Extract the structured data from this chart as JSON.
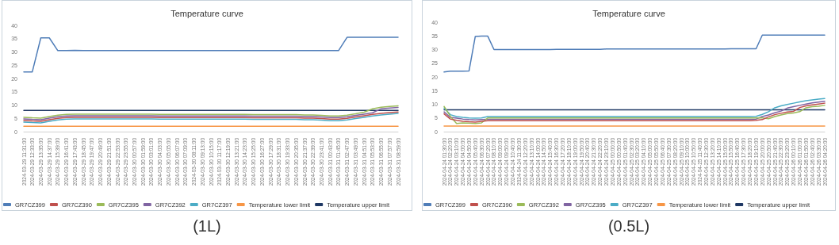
{
  "chart_data": [
    {
      "type": "line",
      "title": "Temperature curve",
      "legend": "bottom",
      "grid": false,
      "ylim": [
        0,
        40
      ],
      "yticks": [
        0,
        5,
        10,
        15,
        20,
        25,
        30,
        35,
        40
      ],
      "annotations": [
        "(1L)"
      ],
      "categories": [
        "2024-03-29 11:31:00",
        "2024-03-29 12:33:00",
        "2024-03-29 13:35:00",
        "2024-03-29 14:37:00",
        "2024-03-29 15:39:00",
        "2024-03-29 16:41:00",
        "2024-03-29 17:43:00",
        "2024-03-29 18:45:00",
        "2024-03-29 19:47:00",
        "2024-03-29 20:49:00",
        "2024-03-29 21:51:00",
        "2024-03-29 22:53:00",
        "2024-03-29 23:55:00",
        "2024-03-30 00:57:00",
        "2024-03-30 01:59:00",
        "2024-03-30 03:01:00",
        "2024-03-30 04:03:00",
        "2024-03-30 05:05:00",
        "2024-03-30 06:07:00",
        "2024-03-30 07:09:00",
        "2024-03-30 08:11:00",
        "2024-03-30 09:13:00",
        "2024-03-30 10:15:00",
        "2024-03-30 11:17:00",
        "2024-03-30 12:19:00",
        "2024-03-30 13:21:00",
        "2024-03-30 14:23:00",
        "2024-03-30 15:25:00",
        "2024-03-30 16:27:00",
        "2024-03-30 17:29:00",
        "2024-03-30 18:31:00",
        "2024-03-30 19:33:00",
        "2024-03-30 20:35:00",
        "2024-03-30 21:37:00",
        "2024-03-30 22:39:00",
        "2024-03-30 23:41:00",
        "2024-03-31 00:43:00",
        "2024-03-31 01:45:00",
        "2024-03-31 02:47:00",
        "2024-03-31 03:49:00",
        "2024-03-31 04:51:00",
        "2024-03-31 05:53:00",
        "2024-03-31 06:55:00",
        "2024-03-31 07:57:00",
        "2024-03-31 08:59:00"
      ],
      "series": [
        {
          "name": "GR7CZ399",
          "color": "#4f7db8",
          "values": [
            22.5,
            22.5,
            35.3,
            35.3,
            30.5,
            30.5,
            30.6,
            30.5,
            30.5,
            30.5,
            30.5,
            30.5,
            30.5,
            30.5,
            30.5,
            30.5,
            30.5,
            30.5,
            30.5,
            30.5,
            30.5,
            30.5,
            30.5,
            30.5,
            30.5,
            30.5,
            30.5,
            30.5,
            30.5,
            30.5,
            30.5,
            30.5,
            30.5,
            30.5,
            30.5,
            30.5,
            30.5,
            30.5,
            35.5,
            35.5,
            35.5,
            35.5,
            35.5,
            35.5,
            35.5
          ]
        },
        {
          "name": "GR7CZ390",
          "color": "#c0504d",
          "values": [
            4.2,
            4.0,
            3.9,
            4.5,
            5.0,
            5.3,
            5.4,
            5.4,
            5.4,
            5.4,
            5.4,
            5.4,
            5.4,
            5.4,
            5.4,
            5.4,
            5.3,
            5.3,
            5.3,
            5.3,
            5.3,
            5.3,
            5.3,
            5.3,
            5.3,
            5.3,
            5.3,
            5.2,
            5.2,
            5.2,
            5.2,
            5.2,
            5.2,
            5.1,
            5.1,
            4.9,
            4.7,
            4.7,
            5.0,
            5.5,
            6.0,
            6.5,
            6.9,
            7.2,
            7.4
          ]
        },
        {
          "name": "GR7CZ395",
          "color": "#9bbb59",
          "values": [
            5.4,
            5.2,
            5.1,
            5.7,
            6.2,
            6.5,
            6.6,
            6.6,
            6.6,
            6.6,
            6.6,
            6.6,
            6.6,
            6.6,
            6.6,
            6.6,
            6.5,
            6.5,
            6.5,
            6.5,
            6.5,
            6.5,
            6.5,
            6.5,
            6.5,
            6.5,
            6.5,
            6.4,
            6.4,
            6.4,
            6.4,
            6.4,
            6.4,
            6.3,
            6.3,
            6.1,
            5.9,
            5.9,
            6.2,
            6.7,
            7.3,
            8.6,
            9.2,
            9.5,
            9.7
          ]
        },
        {
          "name": "GR7CZ392",
          "color": "#8064a2",
          "values": [
            4.8,
            4.6,
            4.5,
            5.1,
            5.6,
            5.9,
            6.0,
            6.0,
            6.0,
            6.0,
            6.0,
            6.0,
            6.0,
            6.0,
            6.0,
            6.0,
            5.9,
            5.9,
            5.9,
            5.9,
            5.9,
            5.9,
            5.9,
            5.9,
            5.9,
            5.9,
            5.9,
            5.8,
            5.8,
            5.8,
            5.8,
            5.8,
            5.8,
            5.7,
            5.7,
            5.5,
            5.3,
            5.3,
            5.6,
            6.1,
            6.6,
            7.1,
            8.6,
            8.9,
            9.1
          ]
        },
        {
          "name": "GR7CZ397",
          "color": "#4bacc6",
          "values": [
            3.6,
            3.4,
            3.3,
            3.9,
            4.4,
            4.7,
            4.8,
            4.8,
            4.8,
            4.8,
            4.8,
            4.8,
            4.8,
            4.8,
            4.8,
            4.8,
            4.7,
            4.7,
            4.7,
            4.7,
            4.7,
            4.7,
            4.7,
            4.7,
            4.7,
            4.7,
            4.7,
            4.6,
            4.6,
            4.6,
            4.6,
            4.6,
            4.6,
            4.5,
            4.5,
            4.3,
            4.1,
            4.1,
            4.4,
            4.9,
            5.4,
            5.9,
            6.3,
            6.6,
            6.9
          ]
        },
        {
          "name": "Temperature lower limit",
          "color": "#f79646",
          "values": [
            2,
            2,
            2,
            2,
            2,
            2,
            2,
            2,
            2,
            2,
            2,
            2,
            2,
            2,
            2,
            2,
            2,
            2,
            2,
            2,
            2,
            2,
            2,
            2,
            2,
            2,
            2,
            2,
            2,
            2,
            2,
            2,
            2,
            2,
            2,
            2,
            2,
            2,
            2,
            2,
            2,
            2,
            2,
            2,
            2
          ]
        },
        {
          "name": "Temperature upper limit",
          "color": "#1f3864",
          "values": [
            8,
            8,
            8,
            8,
            8,
            8,
            8,
            8,
            8,
            8,
            8,
            8,
            8,
            8,
            8,
            8,
            8,
            8,
            8,
            8,
            8,
            8,
            8,
            8,
            8,
            8,
            8,
            8,
            8,
            8,
            8,
            8,
            8,
            8,
            8,
            8,
            8,
            8,
            8,
            8,
            8,
            8,
            8,
            8,
            8
          ]
        }
      ]
    },
    {
      "type": "line",
      "title": "Temperature curve",
      "legend": "bottom",
      "grid": false,
      "ylim": [
        0,
        40
      ],
      "yticks": [
        0,
        5,
        10,
        15,
        20,
        25,
        30,
        35,
        40
      ],
      "annotations": [
        "(0.5L)"
      ],
      "categories": [
        "2024-04-24 01:30:00",
        "2024-04-24 02:20:00",
        "2024-04-24 03:10:00",
        "2024-04-24 04:00:00",
        "2024-04-24 04:50:00",
        "2024-04-24 05:40:00",
        "2024-04-24 06:30:00",
        "2024-04-24 07:20:00",
        "2024-04-24 08:10:00",
        "2024-04-24 09:00:00",
        "2024-04-24 09:50:00",
        "2024-04-24 10:40:00",
        "2024-04-24 11:30:00",
        "2024-04-24 12:20:00",
        "2024-04-24 13:10:00",
        "2024-04-24 14:00:00",
        "2024-04-24 14:50:00",
        "2024-04-24 15:40:00",
        "2024-04-24 16:30:00",
        "2024-04-24 17:20:00",
        "2024-04-24 18:10:00",
        "2024-04-24 19:00:00",
        "2024-04-24 19:50:00",
        "2024-04-24 20:40:00",
        "2024-04-24 21:30:00",
        "2024-04-24 22:20:00",
        "2024-04-24 23:10:00",
        "2024-04-25 00:00:00",
        "2024-04-25 00:50:00",
        "2024-04-25 01:40:00",
        "2024-04-25 02:30:00",
        "2024-04-25 03:20:00",
        "2024-04-25 04:10:00",
        "2024-04-25 05:00:00",
        "2024-04-25 05:50:00",
        "2024-04-25 06:40:00",
        "2024-04-25 07:30:00",
        "2024-04-25 08:20:00",
        "2024-04-25 09:10:00",
        "2024-04-25 10:00:00",
        "2024-04-25 10:50:00",
        "2024-04-25 11:40:00",
        "2024-04-25 12:30:00",
        "2024-04-25 13:20:00",
        "2024-04-25 14:10:00",
        "2024-04-25 15:00:00",
        "2024-04-25 15:50:00",
        "2024-04-25 16:40:00",
        "2024-04-25 17:30:00",
        "2024-04-25 18:20:00",
        "2024-04-25 19:10:00",
        "2024-04-25 20:00:00",
        "2024-04-25 20:50:00",
        "2024-04-25 21:40:00",
        "2024-04-25 22:30:00",
        "2024-04-25 23:20:00",
        "2024-04-26 00:10:00",
        "2024-04-26 01:00:00",
        "2024-04-26 01:50:00",
        "2024-04-26 02:40:00",
        "2024-04-26 03:30:00",
        "2024-04-26 04:20:00"
      ],
      "series": [
        {
          "name": "GR7CZ399",
          "color": "#4f7db8",
          "values": [
            21.8,
            22.1,
            22.1,
            22.1,
            22.2,
            34.8,
            34.9,
            34.9,
            30.0,
            30.0,
            30.0,
            30.0,
            30.0,
            30.0,
            30.0,
            30.0,
            30.0,
            30.0,
            30.1,
            30.1,
            30.1,
            30.1,
            30.1,
            30.1,
            30.1,
            30.1,
            30.2,
            30.2,
            30.2,
            30.2,
            30.2,
            30.2,
            30.2,
            30.2,
            30.2,
            30.2,
            30.2,
            30.2,
            30.2,
            30.2,
            30.2,
            30.2,
            30.2,
            30.2,
            30.2,
            30.2,
            30.3,
            30.3,
            30.3,
            30.3,
            30.3,
            35.3,
            35.3,
            35.3,
            35.3,
            35.3,
            35.3,
            35.3,
            35.3,
            35.3,
            35.3,
            35.3
          ]
        },
        {
          "name": "GR7CZ390",
          "color": "#c0504d",
          "values": [
            6.5,
            4.6,
            4.1,
            3.8,
            3.6,
            3.5,
            3.8,
            4.0,
            4.0,
            4.0,
            4.0,
            4.0,
            4.0,
            4.0,
            4.0,
            4.0,
            4.0,
            4.0,
            4.0,
            4.0,
            4.0,
            4.0,
            4.0,
            4.0,
            4.0,
            4.0,
            4.0,
            4.0,
            4.0,
            4.0,
            4.0,
            4.0,
            4.0,
            4.0,
            4.0,
            4.0,
            4.0,
            4.0,
            4.0,
            4.0,
            4.0,
            4.0,
            4.0,
            4.0,
            4.0,
            4.0,
            4.0,
            4.0,
            4.0,
            4.0,
            4.1,
            4.4,
            5.4,
            6.2,
            6.7,
            7.2,
            7.4,
            8.8,
            9.4,
            9.8,
            10.1,
            10.4
          ]
        },
        {
          "name": "GR7CZ392",
          "color": "#9bbb59",
          "values": [
            9.2,
            5.6,
            3.0,
            3.2,
            3.1,
            3.0,
            3.2,
            5.0,
            5.0,
            5.0,
            5.0,
            5.0,
            5.0,
            5.0,
            5.0,
            5.0,
            5.0,
            5.0,
            5.0,
            5.0,
            5.0,
            5.0,
            5.0,
            5.0,
            5.0,
            5.0,
            5.0,
            5.0,
            5.0,
            5.0,
            5.0,
            5.0,
            5.0,
            5.0,
            5.0,
            5.0,
            5.0,
            5.0,
            5.0,
            5.0,
            5.0,
            5.0,
            5.0,
            5.0,
            5.0,
            5.0,
            5.0,
            5.0,
            5.0,
            5.0,
            5.0,
            5.0,
            4.7,
            5.5,
            6.1,
            6.6,
            6.8,
            7.3,
            8.7,
            9.1,
            9.3,
            9.6
          ]
        },
        {
          "name": "GR7CZ395",
          "color": "#8064a2",
          "values": [
            7.2,
            5.2,
            4.9,
            4.6,
            4.4,
            4.3,
            4.4,
            4.5,
            4.5,
            4.5,
            4.5,
            4.5,
            4.5,
            4.5,
            4.5,
            4.5,
            4.5,
            4.5,
            4.5,
            4.5,
            4.5,
            4.5,
            4.5,
            4.5,
            4.5,
            4.5,
            4.5,
            4.5,
            4.5,
            4.5,
            4.5,
            4.5,
            4.5,
            4.5,
            4.5,
            4.5,
            4.5,
            4.5,
            4.5,
            4.5,
            4.5,
            4.5,
            4.5,
            4.5,
            4.5,
            4.5,
            4.5,
            4.5,
            4.5,
            4.5,
            4.6,
            5.5,
            6.1,
            6.9,
            7.5,
            8.6,
            9.1,
            9.6,
            10.1,
            10.5,
            10.8,
            11.1
          ]
        },
        {
          "name": "GR7CZ397",
          "color": "#4bacc6",
          "values": [
            8.6,
            6.2,
            5.5,
            5.2,
            5.0,
            4.9,
            5.0,
            5.5,
            5.5,
            5.5,
            5.5,
            5.5,
            5.5,
            5.5,
            5.5,
            5.5,
            5.5,
            5.5,
            5.5,
            5.5,
            5.5,
            5.5,
            5.5,
            5.5,
            5.5,
            5.5,
            5.5,
            5.5,
            5.5,
            5.5,
            5.5,
            5.5,
            5.5,
            5.5,
            5.5,
            5.5,
            5.5,
            5.5,
            5.5,
            5.5,
            5.5,
            5.5,
            5.5,
            5.5,
            5.5,
            5.5,
            5.5,
            5.5,
            5.5,
            5.5,
            5.6,
            6.3,
            7.3,
            8.7,
            9.4,
            9.9,
            10.4,
            10.9,
            11.3,
            11.6,
            11.9,
            12.1
          ]
        },
        {
          "name": "Temperature lower limit",
          "color": "#f79646",
          "values": [
            2,
            2,
            2,
            2,
            2,
            2,
            2,
            2,
            2,
            2,
            2,
            2,
            2,
            2,
            2,
            2,
            2,
            2,
            2,
            2,
            2,
            2,
            2,
            2,
            2,
            2,
            2,
            2,
            2,
            2,
            2,
            2,
            2,
            2,
            2,
            2,
            2,
            2,
            2,
            2,
            2,
            2,
            2,
            2,
            2,
            2,
            2,
            2,
            2,
            2,
            2,
            2,
            2,
            2,
            2,
            2,
            2,
            2,
            2,
            2,
            2,
            2
          ]
        },
        {
          "name": "Temperature upper limit",
          "color": "#1f3864",
          "values": [
            8,
            8,
            8,
            8,
            8,
            8,
            8,
            8,
            8,
            8,
            8,
            8,
            8,
            8,
            8,
            8,
            8,
            8,
            8,
            8,
            8,
            8,
            8,
            8,
            8,
            8,
            8,
            8,
            8,
            8,
            8,
            8,
            8,
            8,
            8,
            8,
            8,
            8,
            8,
            8,
            8,
            8,
            8,
            8,
            8,
            8,
            8,
            8,
            8,
            8,
            8,
            8,
            8,
            8,
            8,
            8,
            8,
            8,
            8,
            8,
            8,
            8
          ]
        }
      ]
    }
  ]
}
